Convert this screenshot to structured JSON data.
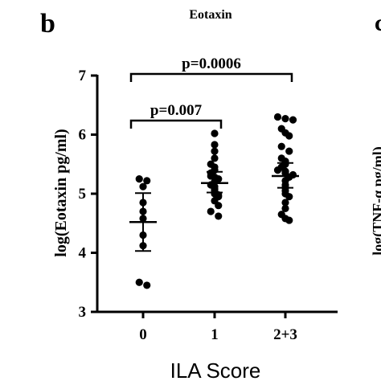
{
  "panel_label": "b",
  "next_panel_label_fragment": "c",
  "side_axis_fragment": "log(TNF-α pg/ml)",
  "chart_data": {
    "type": "scatter",
    "title": "Eotaxin",
    "xlabel": "ILA  Score",
    "ylabel": "log(Eotaxin pg/ml)",
    "ylim": [
      3,
      7
    ],
    "yticks": [
      3,
      4,
      5,
      6,
      7
    ],
    "categories": [
      "0",
      "1",
      "2+3"
    ],
    "grid": false,
    "groups": [
      {
        "category": "0",
        "mean": 4.52,
        "sd_upper": 5.01,
        "sd_lower": 4.03,
        "points": [
          5.25,
          5.22,
          5.12,
          4.85,
          4.7,
          4.58,
          4.3,
          4.12,
          3.5,
          3.45
        ]
      },
      {
        "category": "1",
        "mean": 5.18,
        "sd_upper": 5.37,
        "sd_lower": 5.02,
        "points": [
          6.02,
          5.83,
          5.72,
          5.6,
          5.5,
          5.45,
          5.4,
          5.3,
          5.25,
          5.2,
          5.12,
          5.05,
          5.0,
          4.95,
          4.88,
          4.8,
          4.7,
          4.62,
          5.35,
          5.15,
          5.08,
          4.98,
          5.28
        ]
      },
      {
        "category": "2+3",
        "mean": 5.3,
        "sd_upper": 5.52,
        "sd_lower": 5.1,
        "points": [
          6.3,
          6.27,
          6.25,
          6.03,
          5.98,
          5.8,
          5.72,
          5.55,
          5.5,
          5.45,
          5.4,
          5.35,
          5.32,
          5.28,
          5.22,
          5.15,
          5.1,
          5.0,
          4.95,
          4.85,
          4.75,
          4.65,
          4.58,
          4.55,
          6.1,
          5.6,
          5.05,
          5.38
        ]
      }
    ],
    "comparisons": [
      {
        "from": "0",
        "to": "1",
        "label": "p=0.007"
      },
      {
        "from": "0",
        "to": "2+3",
        "label": "p=0.0006"
      }
    ]
  }
}
